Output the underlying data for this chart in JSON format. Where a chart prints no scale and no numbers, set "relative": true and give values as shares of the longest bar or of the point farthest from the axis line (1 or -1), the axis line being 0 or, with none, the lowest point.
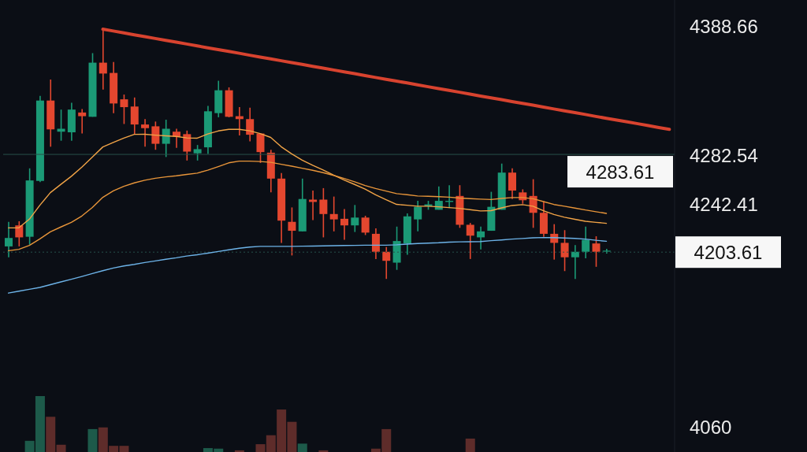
{
  "chart_data": [
    {
      "type": "candlestick",
      "categories": [
        null,
        null,
        null,
        null,
        null,
        null,
        null,
        null,
        null,
        null,
        null,
        null,
        null,
        null,
        null,
        null,
        null,
        null,
        null,
        null,
        null,
        null,
        null,
        null,
        null,
        null,
        null,
        null,
        null,
        null,
        null,
        null,
        null,
        null,
        null,
        null,
        null,
        null,
        null,
        null,
        null,
        null,
        null,
        null,
        null,
        null,
        null,
        null,
        null,
        null,
        null,
        null,
        null,
        null,
        null,
        null,
        null,
        null,
        null,
        null,
        null,
        null,
        null,
        null
      ],
      "ohlc": [
        [
          4208.3,
          4228.4,
          4199.4,
          4215.2
        ],
        [
          4225.5,
          4228.9,
          4208.3,
          4215.7
        ],
        [
          4216.2,
          4272.2,
          4209.8,
          4262.3
        ],
        [
          4261.9,
          4331.6,
          4260.9,
          4327.7
        ],
        [
          4327.7,
          4344.9,
          4289.9,
          4304.1
        ],
        [
          4302.2,
          4320.3,
          4294.8,
          4304.6
        ],
        [
          4301.7,
          4325.8,
          4294.8,
          4320.3
        ],
        [
          4317.9,
          4320.8,
          4300.7,
          4314.9
        ],
        [
          4314.4,
          4366.5,
          4314.4,
          4358.7
        ],
        [
          4358.7,
          4386.7,
          4336.6,
          4349.8
        ],
        [
          4350.3,
          4359.2,
          4317.4,
          4325.3
        ],
        [
          4328.7,
          4332.6,
          4308.5,
          4322.3
        ],
        [
          4322.8,
          4330.2,
          4300.2,
          4308.1
        ],
        [
          4308.1,
          4312.5,
          4289.9,
          4305.1
        ],
        [
          4306.6,
          4310.5,
          4287.4,
          4292.3
        ],
        [
          4292.3,
          4312.0,
          4281.5,
          4304.6
        ],
        [
          4302.2,
          4304.6,
          4288.9,
          4298.2
        ],
        [
          4300.2,
          4303.1,
          4278.6,
          4285.9
        ],
        [
          4284.5,
          4291.3,
          4278.6,
          4287.9
        ],
        [
          4289.4,
          4323.3,
          4284.0,
          4318.9
        ],
        [
          4317.4,
          4343.9,
          4314.0,
          4336.1
        ],
        [
          4336.1,
          4338.5,
          4314.0,
          4314.4
        ],
        [
          4314.9,
          4322.3,
          4299.2,
          4312.5
        ],
        [
          4312.5,
          4321.8,
          4294.3,
          4299.7
        ],
        [
          4300.7,
          4300.7,
          4276.6,
          4285.5
        ],
        [
          4285.0,
          4287.4,
          4252.5,
          4263.8
        ],
        [
          4263.8,
          4268.3,
          4211.2,
          4229.4
        ],
        [
          4228.4,
          4240.2,
          4200.9,
          4221.1
        ],
        [
          4220.6,
          4263.8,
          4220.6,
          4247.1
        ],
        [
          4246.6,
          4254.0,
          4229.9,
          4244.7
        ],
        [
          4246.6,
          4256.0,
          4215.7,
          4234.8
        ],
        [
          4234.8,
          4249.1,
          4220.6,
          4230.4
        ],
        [
          4230.9,
          4238.8,
          4213.7,
          4225.5
        ],
        [
          4225.5,
          4242.2,
          4220.1,
          4231.9
        ],
        [
          4231.9,
          4233.4,
          4217.6,
          4219.6
        ],
        [
          4218.6,
          4223.0,
          4198.0,
          4203.9
        ],
        [
          4203.9,
          4207.8,
          4181.7,
          4196.5
        ],
        [
          4195.0,
          4224.5,
          4189.1,
          4212.7
        ],
        [
          4210.7,
          4235.3,
          4201.4,
          4232.9
        ],
        [
          4230.4,
          4245.6,
          4220.6,
          4240.7
        ],
        [
          4241.2,
          4245.6,
          4238.3,
          4242.7
        ],
        [
          4238.3,
          4257.4,
          4238.3,
          4245.6
        ],
        [
          4244.7,
          4258.4,
          4239.7,
          4245.6
        ],
        [
          4249.6,
          4258.4,
          4223.5,
          4226.0
        ],
        [
          4226.0,
          4227.5,
          4198.0,
          4217.1
        ],
        [
          4215.7,
          4224.5,
          4205.8,
          4220.6
        ],
        [
          4221.1,
          4253.0,
          4221.1,
          4240.7
        ],
        [
          4238.3,
          4276.1,
          4238.3,
          4268.7
        ],
        [
          4268.7,
          4272.2,
          4247.1,
          4254.0
        ],
        [
          4252.5,
          4255.0,
          4243.2,
          4246.1
        ],
        [
          4249.6,
          4263.3,
          4223.5,
          4235.8
        ],
        [
          4235.8,
          4245.1,
          4216.2,
          4218.6
        ],
        [
          4218.6,
          4226.5,
          4197.5,
          4211.2
        ],
        [
          4211.2,
          4221.6,
          4188.1,
          4199.4
        ],
        [
          4199.4,
          4209.3,
          4181.7,
          4203.9
        ],
        [
          4203.9,
          4224.5,
          4198.5,
          4213.7
        ],
        [
          4210.7,
          4216.6,
          4191.6,
          4203.9
        ],
        [
          4204.4,
          4206.3,
          4202.4,
          4204.8
        ],
        null,
        null,
        null,
        null,
        null,
        null
      ],
      "colors": [
        "#1b9a76",
        "#e4472f",
        "#1b9a76",
        "#1b9a76",
        "#e4472f",
        "#1b9a76",
        "#1b9a76",
        "#e4472f",
        "#1b9a76",
        "#e4472f",
        "#e4472f",
        "#e4472f",
        "#e4472f",
        "#e4472f",
        "#e4472f",
        "#1b9a76",
        "#e4472f",
        "#e4472f",
        "#1b9a76",
        "#1b9a76",
        "#1b9a76",
        "#e4472f",
        "#e4472f",
        "#e4472f",
        "#e4472f",
        "#e4472f",
        "#e4472f",
        "#e4472f",
        "#1b9a76",
        "#e4472f",
        "#e4472f",
        "#e4472f",
        "#e4472f",
        "#1b9a76",
        "#e4472f",
        "#e4472f",
        "#e4472f",
        "#1b9a76",
        "#1b9a76",
        "#1b9a76",
        "#1b9a76",
        "#1b9a76",
        "#1b9a76",
        "#e4472f",
        "#e4472f",
        "#1b9a76",
        "#1b9a76",
        "#1b9a76",
        "#e4472f",
        "#e4472f",
        "#e4472f",
        "#e4472f",
        "#e4472f",
        "#e4472f",
        "#1b9a76",
        "#1b9a76",
        "#e4472f",
        "#1b9a76",
        null,
        null,
        null,
        null,
        null,
        null
      ],
      "series": [
        {
          "type": "line",
          "color": "#f2a447",
          "values": [
            4223.5,
            4223.5,
            4230.6,
            4242.0,
            4252.3,
            4259.1,
            4265.7,
            4273.2,
            4281.4,
            4289.7,
            4293.4,
            4296.9,
            4300.0,
            4300.1,
            4299.4,
            4298.8,
            4298.3,
            4297.1,
            4296.9,
            4300.3,
            4302.8,
            4304.1,
            4304.1,
            4302.9,
            4300.7,
            4297.5,
            4289.9,
            4284.1,
            4278.9,
            4274.7,
            4270.8,
            4266.6,
            4262.7,
            4259.0,
            4255.2,
            4250.5,
            4246.5,
            4242.7,
            4242.0,
            4241.2,
            4241.2,
            4240.7,
            4240.1,
            4239.4,
            4238.4,
            4237.3,
            4237.6,
            4239.8,
            4241.8,
            4242.5,
            4241.2,
            4237.5,
            4234.4,
            4232.2,
            4230.5,
            4228.9,
            4228.0,
            4227.2,
            null,
            null,
            null,
            null,
            null,
            null
          ]
        },
        {
          "type": "line",
          "color": "#e8953a",
          "values": [
            4204.8,
            4205.9,
            4209.1,
            4214.4,
            4220.2,
            4224.2,
            4228.0,
            4233.2,
            4240.1,
            4248.5,
            4253.8,
            4257.5,
            4260.3,
            4262.5,
            4264.1,
            4265.2,
            4266.1,
            4267.2,
            4268.3,
            4270.7,
            4273.6,
            4276.7,
            4278.1,
            4278.1,
            4277.8,
            4277.1,
            4275.5,
            4274.0,
            4272.3,
            4270.6,
            4268.7,
            4266.4,
            4263.9,
            4261.2,
            4258.1,
            4255.7,
            4253.6,
            4251.5,
            4250.6,
            4249.6,
            4249.3,
            4249.0,
            4248.6,
            4247.9,
            4247.4,
            4247.0,
            4246.7,
            4247.6,
            4248.3,
            4248.3,
            4247.3,
            4245.0,
            4242.6,
            4241.2,
            4239.7,
            4238.1,
            4236.7,
            4235.3,
            null,
            null,
            null,
            null,
            null,
            null
          ]
        },
        {
          "type": "line",
          "color": "#6db3e8",
          "values": [
            4170.1,
            4171.7,
            4173.2,
            4174.7,
            4177.0,
            4179.2,
            4181.4,
            4183.7,
            4186.1,
            4188.4,
            4190.6,
            4192.3,
            4193.6,
            4195.1,
            4196.4,
            4197.8,
            4199.0,
            4200.4,
            4201.5,
            4202.8,
            4204.1,
            4205.5,
            4206.8,
            4207.8,
            4208.3,
            4208.3,
            4208.3,
            4208.3,
            4208.5,
            4208.6,
            4208.7,
            4208.9,
            4209.0,
            4209.1,
            4209.3,
            4209.3,
            4209.3,
            4209.6,
            4210.2,
            4210.7,
            4211.0,
            4211.3,
            4211.8,
            4212.0,
            4212.1,
            4212.3,
            4213.0,
            4213.6,
            4214.3,
            4214.8,
            4215.3,
            4215.6,
            4215.5,
            4215.2,
            4214.8,
            4214.3,
            4213.3,
            4212.5,
            null,
            null,
            null,
            null,
            null,
            null
          ]
        },
        {
          "type": "line",
          "color": "#d8432f",
          "values": [
            null,
            null,
            null,
            null,
            null,
            null,
            null,
            null,
            null,
            4386.1,
            4384.6,
            4383.1,
            4381.5,
            4380.0,
            4378.5,
            4377.0,
            4375.5,
            4374.0,
            4372.4,
            4370.9,
            4369.4,
            4367.9,
            4366.4,
            4364.8,
            4363.3,
            4361.8,
            4360.3,
            4358.8,
            4357.3,
            4355.7,
            4354.2,
            4352.7,
            4351.2,
            4349.7,
            4348.1,
            4346.6,
            4345.1,
            4343.6,
            4342.1,
            4340.6,
            4339.0,
            4337.5,
            4336.0,
            4334.5,
            4333.0,
            4331.4,
            4329.9,
            4328.4,
            4326.9,
            4325.4,
            4323.9,
            4322.3,
            4320.8,
            4319.3,
            4317.8,
            4316.3,
            4314.7,
            4313.2,
            4311.7,
            4310.2,
            4308.7,
            4307.2,
            4305.6,
            4304.1
          ]
        }
      ],
      "ylim": [
        4040,
        4410
      ],
      "yticks": [
        4388.66,
        4282.54,
        4242.41,
        4060
      ],
      "ref_lines": [
        {
          "axis": "y",
          "value": 4283.61,
          "label": "4283.61",
          "color": "#27504a"
        },
        {
          "axis": "y",
          "value": 4203.61,
          "label": "4203.61",
          "color": "#27504a",
          "line_style": "dotted"
        }
      ],
      "tick_labels": "y"
    },
    {
      "type": "bar",
      "relative": true,
      "categories": [
        null,
        null,
        null,
        null,
        null,
        null,
        null,
        null,
        null,
        null,
        null,
        null,
        null,
        null,
        null,
        null,
        null,
        null,
        null,
        null,
        null,
        null,
        null,
        null,
        null,
        null,
        null,
        null,
        null,
        null,
        null,
        null,
        null,
        null,
        null,
        null,
        null,
        null,
        null,
        null,
        null,
        null,
        null,
        null,
        null,
        null,
        null,
        null,
        null,
        null,
        null,
        null,
        null,
        null,
        null,
        null,
        null,
        null,
        null,
        null,
        null,
        null,
        null,
        null
      ],
      "values": [
        null,
        null,
        0.2,
        1,
        0.63,
        0.13,
        null,
        null,
        0.41,
        0.44,
        0.11,
        0.11,
        null,
        null,
        null,
        null,
        null,
        null,
        null,
        0.07,
        0.06,
        null,
        0.03,
        null,
        0.14,
        0.3,
        0.76,
        0.54,
        0.15,
        null,
        0.03,
        null,
        null,
        null,
        null,
        0.06,
        0.41,
        null,
        null,
        null,
        null,
        null,
        null,
        null,
        0.24,
        null,
        null,
        null,
        null,
        null,
        null,
        null,
        null,
        null,
        null,
        null,
        null,
        null,
        null,
        null,
        null,
        null,
        null,
        null
      ],
      "colors": [
        null,
        null,
        "#1d5a4a",
        "#1d5a4a",
        "#5e2c2a",
        "#5e2c2a",
        null,
        null,
        "#1d5a4a",
        "#5e2c2a",
        "#5e2c2a",
        "#5e2c2a",
        null,
        null,
        null,
        null,
        null,
        null,
        null,
        "#1d5a4a",
        "#1d5a4a",
        null,
        "#5e2c2a",
        null,
        "#5e2c2a",
        "#5e2c2a",
        "#5e2c2a",
        "#5e2c2a",
        "#1d5a4a",
        null,
        "#5e2c2a",
        null,
        null,
        null,
        null,
        "#5e2c2a",
        "#5e2c2a",
        null,
        null,
        null,
        null,
        null,
        null,
        null,
        "#5e2c2a",
        null,
        null,
        null,
        null,
        null,
        null,
        null,
        null,
        null,
        null,
        null,
        null,
        null,
        null,
        null,
        null,
        null,
        null,
        null
      ]
    }
  ]
}
